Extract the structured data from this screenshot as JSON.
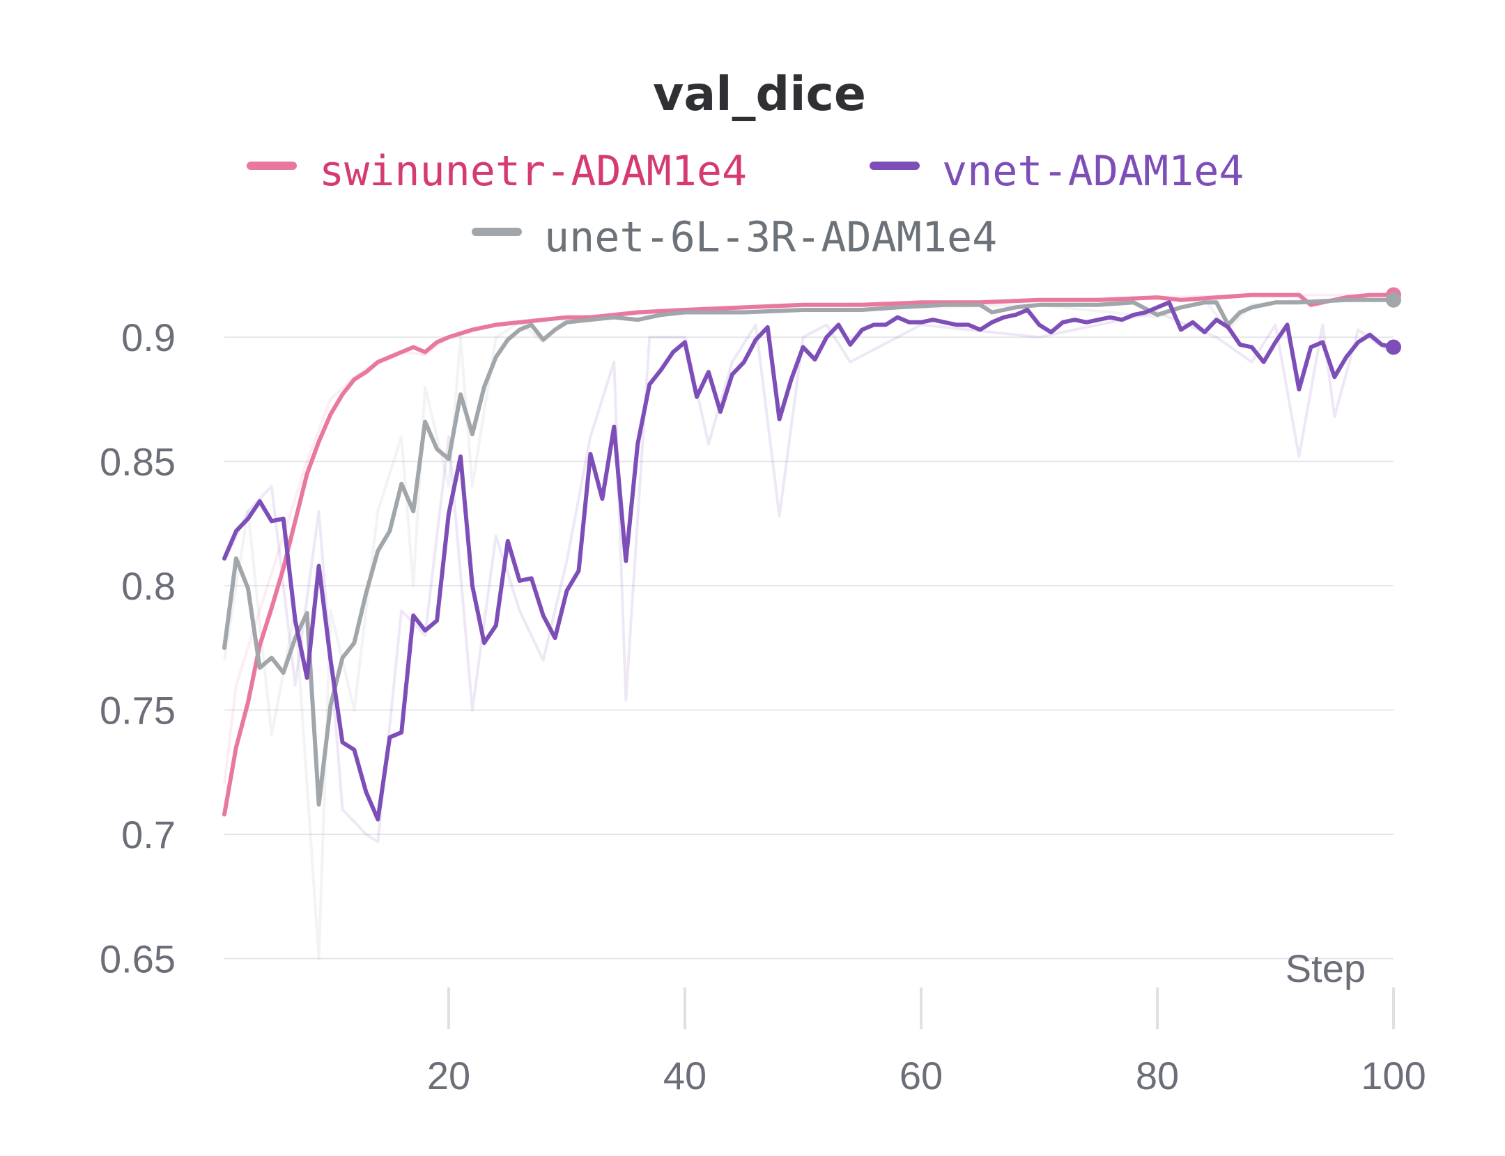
{
  "chart_data": {
    "type": "line",
    "title": "val_dice",
    "xlabel": "Step",
    "ylabel": "",
    "xlim": [
      1,
      100
    ],
    "ylim": [
      0.635,
      0.925
    ],
    "x_ticks": [
      20,
      40,
      60,
      80,
      100
    ],
    "y_ticks": [
      0.65,
      0.7,
      0.75,
      0.8,
      0.85,
      0.9
    ],
    "x_tick_labels": [
      "20",
      "40",
      "60",
      "80",
      "100"
    ],
    "y_tick_labels": [
      "0.65",
      "0.7",
      "0.75",
      "0.8",
      "0.85",
      "0.9"
    ],
    "grid": true,
    "legend_position": "top",
    "series": [
      {
        "name": "swinunetr-ADAM1e4",
        "color": "#e8789e",
        "label_color": "#d63a73",
        "smoothed": [
          [
            1,
            0.708
          ],
          [
            2,
            0.735
          ],
          [
            3,
            0.753
          ],
          [
            4,
            0.776
          ],
          [
            5,
            0.791
          ],
          [
            6,
            0.807
          ],
          [
            7,
            0.826
          ],
          [
            8,
            0.845
          ],
          [
            9,
            0.858
          ],
          [
            10,
            0.869
          ],
          [
            11,
            0.877
          ],
          [
            12,
            0.883
          ],
          [
            13,
            0.886
          ],
          [
            14,
            0.89
          ],
          [
            15,
            0.892
          ],
          [
            16,
            0.894
          ],
          [
            17,
            0.896
          ],
          [
            18,
            0.894
          ],
          [
            19,
            0.898
          ],
          [
            20,
            0.9
          ],
          [
            22,
            0.903
          ],
          [
            24,
            0.905
          ],
          [
            26,
            0.906
          ],
          [
            28,
            0.907
          ],
          [
            30,
            0.908
          ],
          [
            32,
            0.908
          ],
          [
            34,
            0.909
          ],
          [
            36,
            0.91
          ],
          [
            40,
            0.911
          ],
          [
            45,
            0.912
          ],
          [
            50,
            0.913
          ],
          [
            55,
            0.913
          ],
          [
            60,
            0.914
          ],
          [
            65,
            0.914
          ],
          [
            70,
            0.915
          ],
          [
            75,
            0.915
          ],
          [
            80,
            0.916
          ],
          [
            82,
            0.915
          ],
          [
            85,
            0.916
          ],
          [
            88,
            0.917
          ],
          [
            92,
            0.917
          ],
          [
            93,
            0.913
          ],
          [
            96,
            0.916
          ],
          [
            98,
            0.917
          ],
          [
            100,
            0.917
          ]
        ],
        "raw": [
          [
            1,
            0.72
          ],
          [
            2,
            0.76
          ],
          [
            4,
            0.79
          ],
          [
            6,
            0.82
          ],
          [
            8,
            0.85
          ],
          [
            10,
            0.875
          ],
          [
            12,
            0.884
          ],
          [
            14,
            0.89
          ],
          [
            16,
            0.894
          ],
          [
            18,
            0.893
          ],
          [
            20,
            0.9
          ],
          [
            25,
            0.906
          ],
          [
            30,
            0.908
          ],
          [
            40,
            0.911
          ],
          [
            50,
            0.913
          ],
          [
            60,
            0.914
          ],
          [
            70,
            0.915
          ],
          [
            80,
            0.916
          ],
          [
            90,
            0.917
          ],
          [
            100,
            0.917
          ]
        ]
      },
      {
        "name": "vnet-ADAM1e4",
        "color": "#7e4eb8",
        "label_color": "#7e4eb8",
        "smoothed": [
          [
            1,
            0.811
          ],
          [
            2,
            0.822
          ],
          [
            3,
            0.827
          ],
          [
            4,
            0.834
          ],
          [
            5,
            0.826
          ],
          [
            6,
            0.827
          ],
          [
            7,
            0.786
          ],
          [
            8,
            0.763
          ],
          [
            9,
            0.808
          ],
          [
            10,
            0.77
          ],
          [
            11,
            0.737
          ],
          [
            12,
            0.734
          ],
          [
            13,
            0.717
          ],
          [
            14,
            0.706
          ],
          [
            15,
            0.739
          ],
          [
            16,
            0.741
          ],
          [
            17,
            0.788
          ],
          [
            18,
            0.782
          ],
          [
            19,
            0.786
          ],
          [
            20,
            0.829
          ],
          [
            21,
            0.852
          ],
          [
            22,
            0.8
          ],
          [
            23,
            0.777
          ],
          [
            24,
            0.784
          ],
          [
            25,
            0.818
          ],
          [
            26,
            0.802
          ],
          [
            27,
            0.803
          ],
          [
            28,
            0.788
          ],
          [
            29,
            0.779
          ],
          [
            30,
            0.798
          ],
          [
            31,
            0.806
          ],
          [
            32,
            0.853
          ],
          [
            33,
            0.835
          ],
          [
            34,
            0.864
          ],
          [
            35,
            0.81
          ],
          [
            36,
            0.857
          ],
          [
            37,
            0.881
          ],
          [
            38,
            0.887
          ],
          [
            39,
            0.894
          ],
          [
            40,
            0.898
          ],
          [
            41,
            0.876
          ],
          [
            42,
            0.886
          ],
          [
            43,
            0.87
          ],
          [
            44,
            0.885
          ],
          [
            45,
            0.89
          ],
          [
            46,
            0.899
          ],
          [
            47,
            0.904
          ],
          [
            48,
            0.867
          ],
          [
            49,
            0.883
          ],
          [
            50,
            0.896
          ],
          [
            51,
            0.891
          ],
          [
            52,
            0.9
          ],
          [
            53,
            0.905
          ],
          [
            54,
            0.897
          ],
          [
            55,
            0.903
          ],
          [
            56,
            0.905
          ],
          [
            57,
            0.905
          ],
          [
            58,
            0.908
          ],
          [
            59,
            0.906
          ],
          [
            60,
            0.906
          ],
          [
            61,
            0.907
          ],
          [
            62,
            0.906
          ],
          [
            63,
            0.905
          ],
          [
            64,
            0.905
          ],
          [
            65,
            0.903
          ],
          [
            66,
            0.906
          ],
          [
            67,
            0.908
          ],
          [
            68,
            0.909
          ],
          [
            69,
            0.911
          ],
          [
            70,
            0.905
          ],
          [
            71,
            0.902
          ],
          [
            72,
            0.906
          ],
          [
            73,
            0.907
          ],
          [
            74,
            0.906
          ],
          [
            75,
            0.907
          ],
          [
            76,
            0.908
          ],
          [
            77,
            0.907
          ],
          [
            78,
            0.909
          ],
          [
            79,
            0.91
          ],
          [
            80,
            0.912
          ],
          [
            81,
            0.914
          ],
          [
            82,
            0.903
          ],
          [
            83,
            0.906
          ],
          [
            84,
            0.902
          ],
          [
            85,
            0.907
          ],
          [
            86,
            0.904
          ],
          [
            87,
            0.897
          ],
          [
            88,
            0.896
          ],
          [
            89,
            0.89
          ],
          [
            90,
            0.898
          ],
          [
            91,
            0.905
          ],
          [
            92,
            0.879
          ],
          [
            93,
            0.896
          ],
          [
            94,
            0.898
          ],
          [
            95,
            0.884
          ],
          [
            96,
            0.892
          ],
          [
            97,
            0.898
          ],
          [
            98,
            0.901
          ],
          [
            99,
            0.897
          ],
          [
            100,
            0.896
          ]
        ],
        "raw": [
          [
            1,
            0.81
          ],
          [
            3,
            0.83
          ],
          [
            5,
            0.84
          ],
          [
            7,
            0.76
          ],
          [
            9,
            0.83
          ],
          [
            11,
            0.71
          ],
          [
            13,
            0.7
          ],
          [
            14,
            0.697
          ],
          [
            16,
            0.79
          ],
          [
            18,
            0.78
          ],
          [
            20,
            0.86
          ],
          [
            22,
            0.75
          ],
          [
            24,
            0.82
          ],
          [
            26,
            0.79
          ],
          [
            28,
            0.77
          ],
          [
            30,
            0.81
          ],
          [
            32,
            0.86
          ],
          [
            34,
            0.89
          ],
          [
            35,
            0.754
          ],
          [
            37,
            0.9
          ],
          [
            40,
            0.9
          ],
          [
            42,
            0.857
          ],
          [
            44,
            0.89
          ],
          [
            46,
            0.905
          ],
          [
            48,
            0.828
          ],
          [
            50,
            0.9
          ],
          [
            52,
            0.905
          ],
          [
            54,
            0.89
          ],
          [
            60,
            0.905
          ],
          [
            70,
            0.9
          ],
          [
            80,
            0.91
          ],
          [
            85,
            0.9
          ],
          [
            88,
            0.89
          ],
          [
            90,
            0.905
          ],
          [
            92,
            0.852
          ],
          [
            94,
            0.905
          ],
          [
            95,
            0.868
          ],
          [
            97,
            0.903
          ],
          [
            100,
            0.893
          ]
        ]
      },
      {
        "name": "unet-6L-3R-ADAM1e4",
        "color": "#a1a6aa",
        "label_color": "#6c7279",
        "smoothed": [
          [
            1,
            0.775
          ],
          [
            2,
            0.811
          ],
          [
            3,
            0.799
          ],
          [
            4,
            0.767
          ],
          [
            5,
            0.771
          ],
          [
            6,
            0.765
          ],
          [
            7,
            0.779
          ],
          [
            8,
            0.789
          ],
          [
            9,
            0.712
          ],
          [
            10,
            0.752
          ],
          [
            11,
            0.771
          ],
          [
            12,
            0.777
          ],
          [
            13,
            0.797
          ],
          [
            14,
            0.814
          ],
          [
            15,
            0.822
          ],
          [
            16,
            0.841
          ],
          [
            17,
            0.83
          ],
          [
            18,
            0.866
          ],
          [
            19,
            0.855
          ],
          [
            20,
            0.851
          ],
          [
            21,
            0.877
          ],
          [
            22,
            0.861
          ],
          [
            23,
            0.88
          ],
          [
            24,
            0.892
          ],
          [
            25,
            0.899
          ],
          [
            26,
            0.903
          ],
          [
            27,
            0.905
          ],
          [
            28,
            0.899
          ],
          [
            29,
            0.903
          ],
          [
            30,
            0.906
          ],
          [
            32,
            0.907
          ],
          [
            34,
            0.908
          ],
          [
            36,
            0.907
          ],
          [
            38,
            0.909
          ],
          [
            40,
            0.91
          ],
          [
            45,
            0.91
          ],
          [
            50,
            0.911
          ],
          [
            55,
            0.911
          ],
          [
            58,
            0.912
          ],
          [
            62,
            0.913
          ],
          [
            65,
            0.913
          ],
          [
            66,
            0.91
          ],
          [
            68,
            0.912
          ],
          [
            70,
            0.913
          ],
          [
            75,
            0.913
          ],
          [
            78,
            0.914
          ],
          [
            80,
            0.909
          ],
          [
            82,
            0.912
          ],
          [
            84,
            0.914
          ],
          [
            85,
            0.914
          ],
          [
            86,
            0.905
          ],
          [
            87,
            0.91
          ],
          [
            88,
            0.912
          ],
          [
            90,
            0.914
          ],
          [
            92,
            0.914
          ],
          [
            96,
            0.915
          ],
          [
            100,
            0.915
          ]
        ],
        "raw": [
          [
            1,
            0.77
          ],
          [
            3,
            0.83
          ],
          [
            5,
            0.74
          ],
          [
            7,
            0.79
          ],
          [
            9,
            0.65
          ],
          [
            10,
            0.79
          ],
          [
            12,
            0.75
          ],
          [
            14,
            0.83
          ],
          [
            16,
            0.86
          ],
          [
            17,
            0.8
          ],
          [
            18,
            0.88
          ],
          [
            20,
            0.84
          ],
          [
            21,
            0.9
          ],
          [
            22,
            0.84
          ],
          [
            24,
            0.9
          ],
          [
            26,
            0.906
          ],
          [
            28,
            0.898
          ],
          [
            30,
            0.908
          ],
          [
            40,
            0.91
          ],
          [
            50,
            0.911
          ],
          [
            60,
            0.912
          ],
          [
            70,
            0.913
          ],
          [
            80,
            0.908
          ],
          [
            84,
            0.915
          ],
          [
            86,
            0.903
          ],
          [
            88,
            0.913
          ],
          [
            92,
            0.915
          ],
          [
            100,
            0.915
          ]
        ]
      }
    ]
  }
}
